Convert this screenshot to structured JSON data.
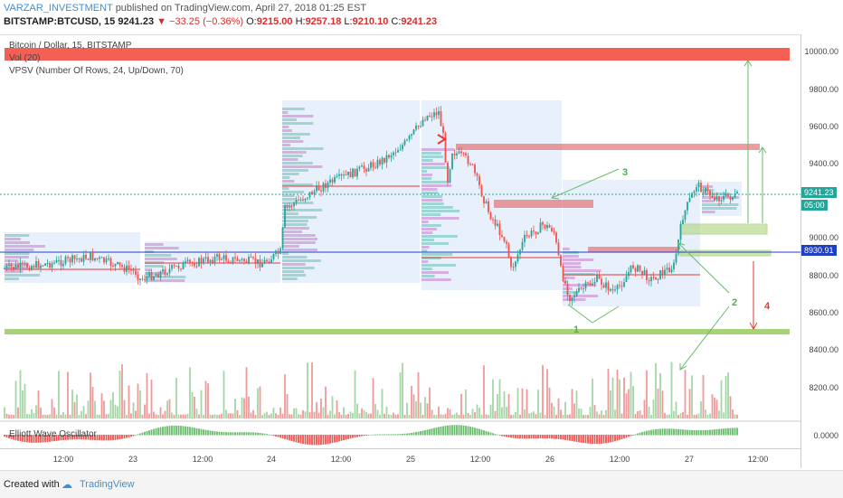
{
  "header": {
    "author": "VARZAR_INVESTMENT",
    "published_text": "published on TradingView.com, April 27, 2018 01:25 EST"
  },
  "quote": {
    "symbol": "BITSTAMP:BTCUSD, 15",
    "last": "9241.23",
    "change": "−33.25 (−0.36%)",
    "open_label": "O:",
    "open": "9215.00",
    "high_label": "H:",
    "high": "9257.18",
    "low_label": "L:",
    "low": "9210.10",
    "close_label": "C:",
    "close": "9241.23"
  },
  "indicators": {
    "main_title": "Bitcoin / Dollar, 15, BITSTAMP",
    "vol": "Vol (20)",
    "vpsv": "VPSV (Number Of Rows, 24, Up/Down, 70)",
    "ewo": "Elliott Wave Oscillator"
  },
  "price_axis": {
    "ticks": [
      "10000.00",
      "9800.00",
      "9600.00",
      "9400.00",
      "9241.23",
      "9000.00",
      "8930.91",
      "8800.00",
      "8600.00",
      "8400.00",
      "8200.00"
    ],
    "last_price_badge": "9241.23",
    "countdown_badge": "05:00",
    "level_badge": "8930.91",
    "osc_tick": "0.0000"
  },
  "time_axis": {
    "ticks": [
      "12:00",
      "23",
      "12:00",
      "24",
      "12:00",
      "25",
      "12:00",
      "26",
      "12:00",
      "27",
      "12:00"
    ]
  },
  "annotations": {
    "one": "1",
    "two": "2",
    "three": "3",
    "four": "4"
  },
  "colors": {
    "up": "#26a69a",
    "down": "#ef5350",
    "resistance_zone": "#f44336",
    "support_zone": "#8bc34a",
    "level_line": "#1e3fbf",
    "annotation_green": "#4caf50",
    "annotation_red": "#e53935"
  },
  "footer": {
    "created": "Created with",
    "brand": "TradingView"
  }
}
